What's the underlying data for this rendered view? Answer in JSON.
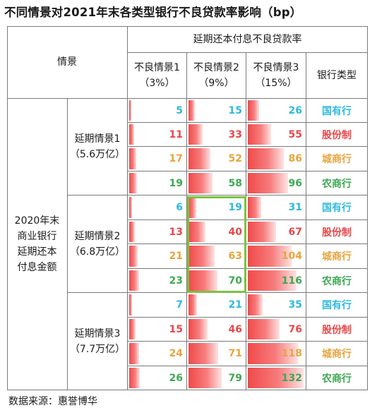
{
  "title": "不同情景对2021年末各类型银行不良贷款率影响（bp）",
  "source": "数据来源：惠誉博华",
  "header": {
    "scenario_label": "情景",
    "group_label": "延期还本付息不良贷款率",
    "npl_scenarios": [
      {
        "line1": "不良情景1",
        "line2": "（3%）"
      },
      {
        "line1": "不良情景2",
        "line2": "（9%）"
      },
      {
        "line1": "不良情景3",
        "line2": "（15%）"
      }
    ],
    "bank_type_label": "银行类型"
  },
  "row_group_label": [
    "2020年末",
    "商业银行",
    "延期还本",
    "付息金额"
  ],
  "deferral_scenarios": [
    {
      "line1": "延期情景1",
      "line2": "（5.6万亿）"
    },
    {
      "line1": "延期情景2",
      "line2": "（6.8万亿）"
    },
    {
      "line1": "延期情景3",
      "line2": "（7.7万亿）"
    }
  ],
  "bank_types": [
    "国有行",
    "股份制",
    "城商行",
    "农商行"
  ],
  "colors": {
    "国有行": "#2fb9de",
    "股份制": "#e8474a",
    "城商行": "#e8a43c",
    "农商行": "#3ea853",
    "bar": "#f04a4a",
    "highlight": "#7dc142"
  },
  "highlight": {
    "column": "不良情景2",
    "deferral_scenario": "延期情景2"
  },
  "chart_data": {
    "type": "table",
    "unit": "bp",
    "values": [
      [
        [
          5,
          15,
          26
        ],
        [
          11,
          33,
          55
        ],
        [
          17,
          52,
          86
        ],
        [
          19,
          58,
          96
        ]
      ],
      [
        [
          6,
          19,
          31
        ],
        [
          13,
          40,
          67
        ],
        [
          21,
          63,
          104
        ],
        [
          23,
          70,
          116
        ]
      ],
      [
        [
          7,
          21,
          35
        ],
        [
          15,
          46,
          76
        ],
        [
          24,
          71,
          118
        ],
        [
          26,
          79,
          132
        ]
      ]
    ],
    "bar_max": 132
  }
}
